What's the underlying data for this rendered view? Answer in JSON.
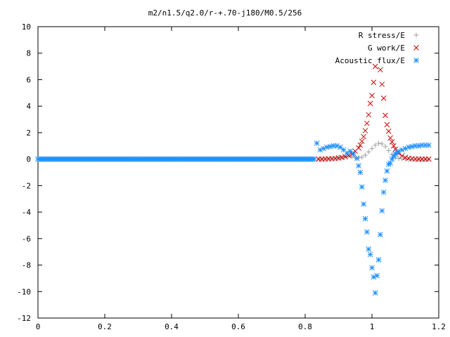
{
  "chart_data": {
    "type": "scatter",
    "title": "m2/n1.5/q2.0/r-+.70-j180/M0.5/256",
    "xlabel": "",
    "ylabel": "",
    "xlim": [
      0,
      1.2
    ],
    "ylim": [
      -12,
      10
    ],
    "xticks": [
      "0",
      "0.2",
      "0.4",
      "0.6",
      "0.8",
      "1",
      "1.2"
    ],
    "yticks": [
      "-12",
      "-10",
      "-8",
      "-6",
      "-4",
      "-2",
      "0",
      "2",
      "4",
      "6",
      "8",
      "10"
    ],
    "grid": false,
    "legend_position": "top-right",
    "series": [
      {
        "name": "R stress/E",
        "marker": "plus",
        "color": "#a0a0a0",
        "x": [
          0.84,
          0.85,
          0.86,
          0.87,
          0.88,
          0.89,
          0.9,
          0.91,
          0.92,
          0.93,
          0.94,
          0.95,
          0.96,
          0.97,
          0.98,
          0.99,
          1.0,
          1.01,
          1.02,
          1.03,
          1.04,
          1.05,
          1.06,
          1.07,
          1.08,
          1.09,
          1.1,
          1.11,
          1.12,
          1.13,
          1.14,
          1.15,
          1.16,
          1.17
        ],
        "y": [
          0.0,
          0.0,
          0.01,
          0.02,
          0.04,
          0.06,
          0.1,
          0.14,
          0.18,
          0.2,
          0.18,
          0.12,
          0.1,
          0.15,
          0.3,
          0.55,
          0.8,
          1.05,
          1.2,
          1.15,
          0.95,
          0.65,
          0.35,
          0.15,
          0.05,
          0.02,
          0.0,
          -0.02,
          -0.02,
          -0.02,
          -0.02,
          -0.02,
          -0.02,
          -0.02
        ]
      },
      {
        "name": "G work/E",
        "marker": "cross",
        "color": "#cc0000",
        "x": [
          0.84,
          0.85,
          0.86,
          0.87,
          0.88,
          0.89,
          0.9,
          0.91,
          0.92,
          0.93,
          0.94,
          0.95,
          0.96,
          0.965,
          0.97,
          0.975,
          0.98,
          0.985,
          0.99,
          0.995,
          1.0,
          1.005,
          1.01,
          1.025,
          1.03,
          1.035,
          1.04,
          1.045,
          1.05,
          1.055,
          1.06,
          1.065,
          1.07,
          1.08,
          1.09,
          1.1,
          1.11,
          1.12,
          1.13,
          1.14,
          1.15,
          1.16,
          1.17
        ],
        "y": [
          0.0,
          0.0,
          0.01,
          0.02,
          0.03,
          0.05,
          0.08,
          0.12,
          0.18,
          0.28,
          0.4,
          0.6,
          0.85,
          1.05,
          1.35,
          1.7,
          2.15,
          2.7,
          3.35,
          4.2,
          4.8,
          5.8,
          7.0,
          6.75,
          5.65,
          4.6,
          3.3,
          2.6,
          2.1,
          1.6,
          1.3,
          1.0,
          0.75,
          0.45,
          0.25,
          0.12,
          0.06,
          0.03,
          0.01,
          0.0,
          0.0,
          0.0,
          0.0
        ]
      },
      {
        "name": "Acoustic flux/E",
        "marker": "star",
        "color": "#1e90ff",
        "x": [
          0.835,
          0.845,
          0.855,
          0.865,
          0.875,
          0.885,
          0.895,
          0.905,
          0.915,
          0.925,
          0.935,
          0.945,
          0.955,
          0.96,
          0.965,
          0.97,
          0.975,
          0.98,
          0.985,
          0.99,
          0.995,
          1.0,
          1.005,
          1.01,
          1.015,
          1.02,
          1.025,
          1.03,
          1.035,
          1.04,
          1.045,
          1.05,
          1.055,
          1.06,
          1.065,
          1.07,
          1.075,
          1.08,
          1.09,
          1.1,
          1.11,
          1.12,
          1.13,
          1.14,
          1.15,
          1.16,
          1.17
        ],
        "y": [
          1.2,
          0.7,
          0.8,
          0.9,
          0.95,
          1.0,
          1.0,
          0.9,
          0.7,
          0.45,
          0.6,
          0.4,
          0.05,
          -0.5,
          -1.0,
          -2.1,
          -3.4,
          -4.5,
          -5.5,
          -6.8,
          -7.2,
          -8.2,
          -8.9,
          -10.1,
          -8.8,
          -7.6,
          -5.7,
          -3.9,
          -2.5,
          -1.6,
          -0.9,
          -0.4,
          -0.3,
          0.0,
          0.2,
          0.4,
          0.5,
          0.6,
          0.7,
          0.8,
          0.9,
          0.95,
          1.0,
          1.0,
          1.05,
          1.05,
          1.05
        ]
      }
    ],
    "flat_segment": {
      "x_from": 0.0,
      "x_to": 0.83,
      "y": 0.0,
      "series": [
        "Acoustic flux/E"
      ]
    }
  }
}
